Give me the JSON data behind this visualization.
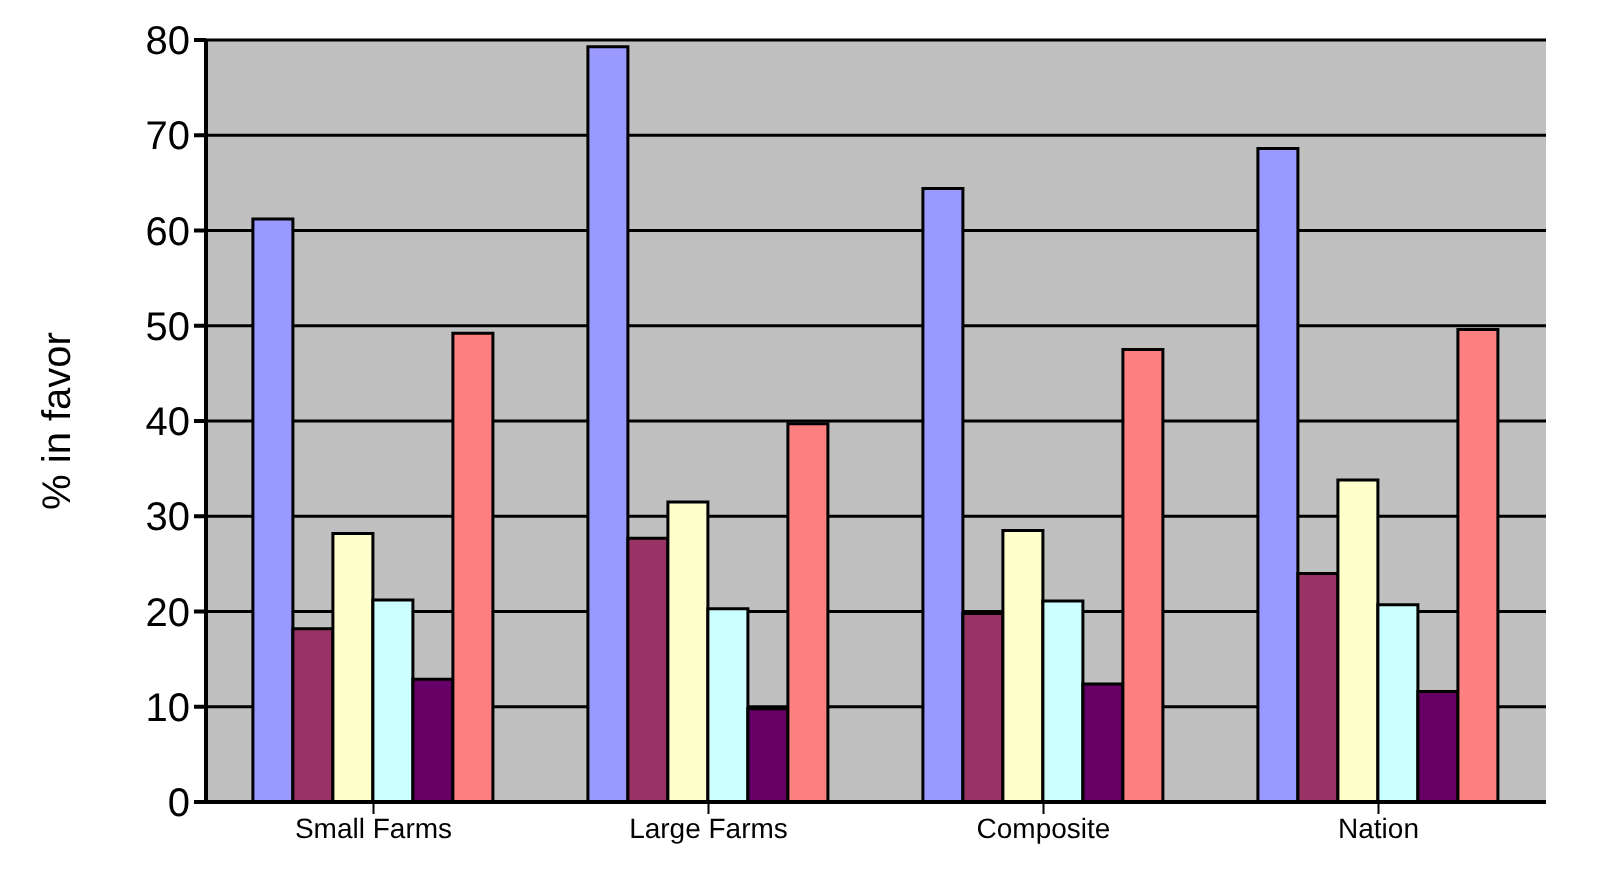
{
  "chart_data": {
    "type": "bar",
    "ylabel": "% in favor",
    "categories": [
      "Small Farms",
      "Large Farms",
      "Composite",
      "Nation"
    ],
    "series": [
      {
        "color": "#9999ff",
        "values": [
          61.2,
          79.3,
          64.4,
          68.6
        ]
      },
      {
        "color": "#993366",
        "values": [
          18.2,
          27.7,
          19.8,
          24.0
        ]
      },
      {
        "color": "#ffffcc",
        "values": [
          28.2,
          31.5,
          28.5,
          33.8
        ]
      },
      {
        "color": "#ccffff",
        "values": [
          21.2,
          20.3,
          21.1,
          20.7
        ]
      },
      {
        "color": "#660066",
        "values": [
          12.9,
          9.8,
          12.4,
          11.6
        ]
      },
      {
        "color": "#ff8080",
        "values": [
          49.2,
          39.7,
          47.5,
          49.6
        ]
      }
    ],
    "ylim": [
      0,
      80
    ],
    "yticks": [
      0,
      10,
      20,
      30,
      40,
      50,
      60,
      70,
      80
    ],
    "grid": "y",
    "legend": false
  }
}
